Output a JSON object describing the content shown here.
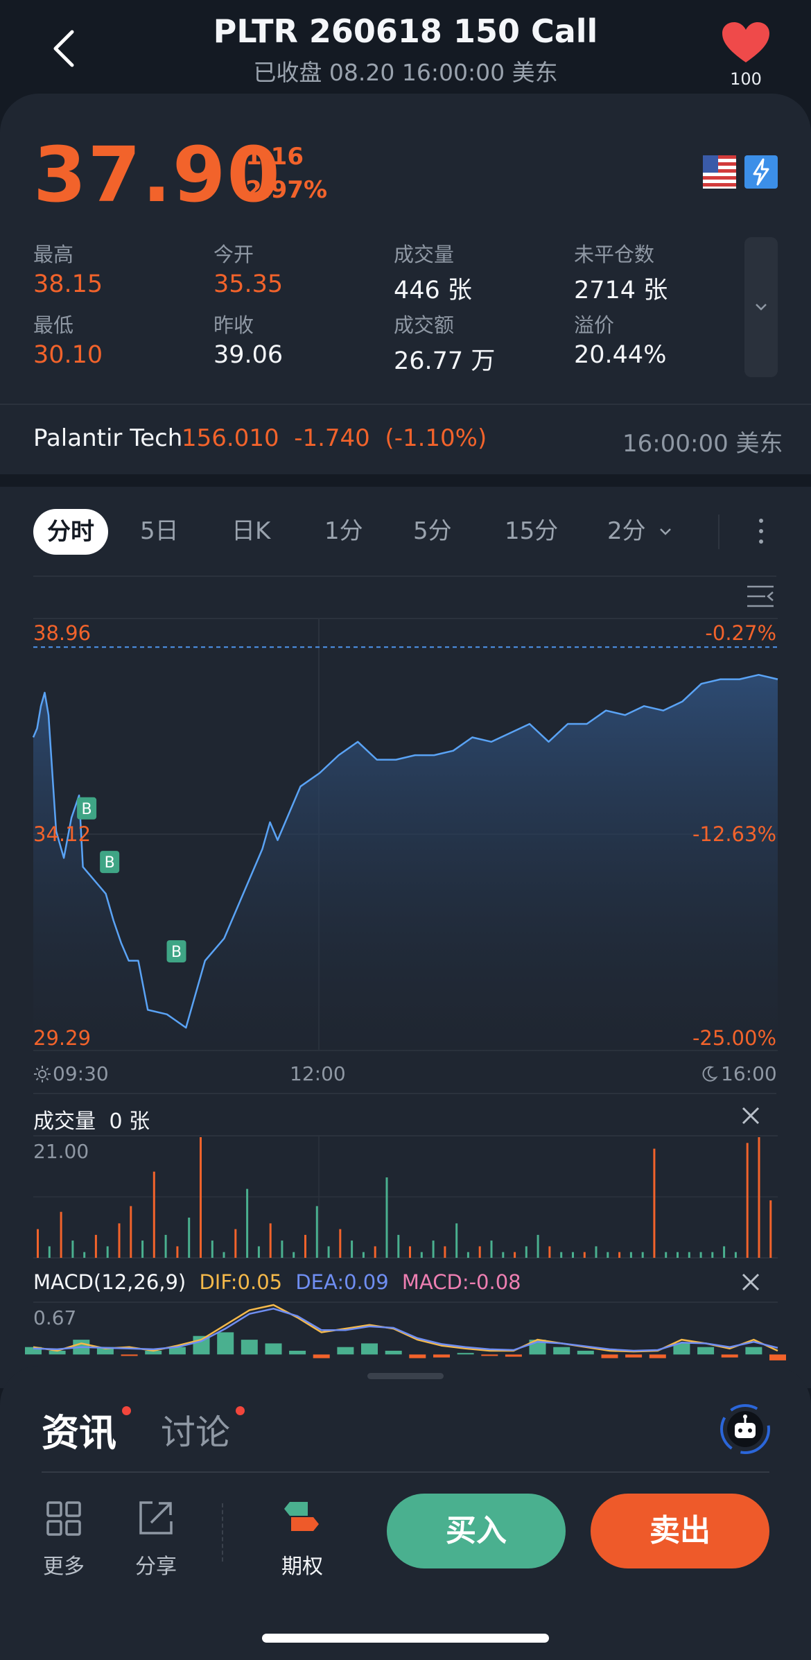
{
  "header": {
    "title": "PLTR 260618 150 Call",
    "subtitle": "已收盘 08.20 16:00:00 美东",
    "watch_count": "100",
    "back_icon": "chevron-left-icon",
    "heart_icon": "heart-icon"
  },
  "quote": {
    "price": "37.90",
    "change": "-1.16",
    "change_pct": "-2.97%",
    "stats": [
      {
        "label": "最高",
        "value": "38.15",
        "up": true
      },
      {
        "label": "今开",
        "value": "35.35",
        "up": true
      },
      {
        "label": "成交量",
        "value": "446 张",
        "up": false
      },
      {
        "label": "未平仓数",
        "value": "2714 张",
        "up": false
      },
      {
        "label": "最低",
        "value": "30.10",
        "up": true
      },
      {
        "label": "昨收",
        "value": "39.06",
        "up": false
      },
      {
        "label": "成交额",
        "value": "26.77 万",
        "up": false
      },
      {
        "label": "溢价",
        "value": "20.44%",
        "up": false
      }
    ]
  },
  "underlying": {
    "name": "Palantir Tech",
    "price_line": "156.010  -1.740  (-1.10%)",
    "time": "16:00:00 美东"
  },
  "chart_tabs": [
    "分时",
    "5日",
    "日K",
    "1分",
    "5分",
    "15分",
    "2分"
  ],
  "colors": {
    "up": "#f2632b",
    "down": "#4ab08f",
    "line": "#5aa3f5",
    "dif": "#f5b94a",
    "dea": "#6f8ef2",
    "macd": "#ee7fb2"
  },
  "chart_data": [
    {
      "type": "line",
      "name": "intraday-price",
      "ylim": [
        29.29,
        38.96
      ],
      "y_ticks": [
        "38.96",
        "34.12",
        "29.29"
      ],
      "y_right_ticks": [
        "-0.27%",
        "-12.63%",
        "-25.00%"
      ],
      "x_ticks": [
        "09:30",
        "12:00",
        "16:00"
      ],
      "x": [
        0,
        2,
        4,
        6,
        8,
        12,
        16,
        20,
        24,
        26,
        30,
        34,
        38,
        42,
        46,
        50,
        55,
        60,
        70,
        80,
        90,
        100,
        110,
        120,
        124,
        128,
        132,
        140,
        150,
        160,
        170,
        180,
        190,
        200,
        210,
        220,
        230,
        240,
        250,
        260,
        270,
        280,
        290,
        300,
        310,
        320,
        330,
        340,
        350,
        360,
        370,
        380,
        390
      ],
      "y": [
        36.3,
        36.5,
        37.0,
        37.3,
        36.8,
        34.2,
        33.6,
        34.5,
        35.0,
        33.4,
        33.2,
        33.0,
        32.8,
        32.2,
        31.7,
        31.3,
        31.3,
        30.2,
        30.1,
        29.8,
        31.3,
        31.8,
        32.8,
        33.8,
        34.4,
        34.0,
        34.4,
        35.2,
        35.5,
        35.9,
        36.2,
        35.8,
        35.8,
        35.9,
        35.9,
        36.0,
        36.3,
        36.2,
        36.4,
        36.6,
        36.2,
        36.6,
        36.6,
        36.9,
        36.8,
        37.0,
        36.9,
        37.1,
        37.5,
        37.6,
        37.6,
        37.7,
        37.6
      ],
      "reference_line": 38.32,
      "markers": [
        {
          "label": "B",
          "x": 28,
          "y": 34.4
        },
        {
          "label": "B",
          "x": 40,
          "y": 33.2
        },
        {
          "label": "B",
          "x": 75,
          "y": 31.2
        }
      ]
    },
    {
      "type": "bar",
      "name": "volume",
      "title": "成交量",
      "value_label": "0 张",
      "y_max_label": "21.00",
      "ylim": [
        0,
        21
      ],
      "values": [
        5,
        2,
        8,
        3,
        1,
        4,
        2,
        6,
        9,
        3,
        15,
        4,
        2,
        7,
        21,
        3,
        1,
        5,
        12,
        2,
        6,
        3,
        1,
        4,
        9,
        2,
        5,
        3,
        1,
        2,
        14,
        4,
        2,
        1,
        3,
        2,
        6,
        1,
        2,
        3,
        1,
        1,
        2,
        4,
        2,
        1,
        1,
        1,
        2,
        1,
        1,
        1,
        1,
        19,
        1,
        1,
        1,
        1,
        1,
        2,
        1,
        20,
        21,
        10
      ],
      "directions": [
        "up",
        "down",
        "up",
        "down",
        "down",
        "up",
        "down",
        "up",
        "up",
        "down",
        "up",
        "down",
        "up",
        "down",
        "up",
        "down",
        "down",
        "up",
        "down",
        "down",
        "up",
        "down",
        "down",
        "up",
        "down",
        "down",
        "up",
        "down",
        "down",
        "up",
        "down",
        "down",
        "up",
        "down",
        "down",
        "up",
        "down",
        "down",
        "up",
        "down",
        "down",
        "up",
        "down",
        "down",
        "up",
        "down",
        "down",
        "up",
        "down",
        "down",
        "up",
        "down",
        "down",
        "up",
        "down",
        "down",
        "down",
        "down",
        "down",
        "down",
        "down",
        "up",
        "up",
        "up"
      ]
    },
    {
      "type": "line",
      "name": "macd",
      "title": "MACD(12,26,9)",
      "dif_label": "DIF:0.05",
      "dea_label": "DEA:0.09",
      "macd_label": "MACD:-0.08",
      "y_max_label": "0.67",
      "ylim": [
        -0.1,
        0.67
      ],
      "dif": [
        0.1,
        0.05,
        0.15,
        0.08,
        0.1,
        0.05,
        0.12,
        0.2,
        0.4,
        0.6,
        0.67,
        0.5,
        0.3,
        0.35,
        0.4,
        0.35,
        0.2,
        0.12,
        0.08,
        0.05,
        0.05,
        0.2,
        0.15,
        0.1,
        0.05,
        0.04,
        0.05,
        0.2,
        0.15,
        0.08,
        0.2,
        0.05
      ],
      "dea": [
        0.08,
        0.07,
        0.1,
        0.09,
        0.08,
        0.07,
        0.1,
        0.18,
        0.35,
        0.55,
        0.62,
        0.52,
        0.33,
        0.33,
        0.38,
        0.36,
        0.22,
        0.14,
        0.1,
        0.07,
        0.06,
        0.17,
        0.15,
        0.11,
        0.07,
        0.05,
        0.06,
        0.16,
        0.15,
        0.1,
        0.17,
        0.09
      ],
      "macd": [
        0.1,
        0.05,
        0.2,
        0.1,
        -0.02,
        0.05,
        0.1,
        0.25,
        0.3,
        0.2,
        0.15,
        0.05,
        -0.05,
        0.1,
        0.15,
        0.05,
        -0.05,
        -0.04,
        0.02,
        -0.02,
        -0.03,
        0.2,
        0.1,
        0.05,
        -0.05,
        -0.04,
        -0.05,
        0.15,
        0.1,
        -0.04,
        0.1,
        -0.08
      ]
    }
  ],
  "bottom": {
    "tab_news": "资讯",
    "tab_discuss": "讨论",
    "more_label": "更多",
    "share_label": "分享",
    "options_label": "期权",
    "buy_label": "买入",
    "sell_label": "卖出"
  }
}
